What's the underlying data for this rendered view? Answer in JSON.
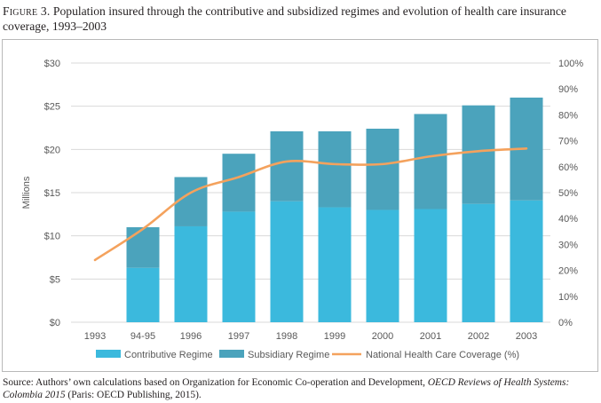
{
  "caption": {
    "figure_label": "Figure 3.",
    "text": "Population insured through the contributive and subsidized regimes and evolution of health care insurance coverage, 1993–2003"
  },
  "source": {
    "prefix": "Source: Authors’ own calculations based on Organization for Economic Co-operation and Development, ",
    "title": "OECD Reviews of Health Systems: Colombia 2015",
    "suffix": " (Paris: OECD Publishing, 2015)."
  },
  "colors": {
    "contributive": "#3bb9dd",
    "subsidiary": "#4ba3bc",
    "coverage": "#f4a25d",
    "grid": "#d9d9d9",
    "axis_text": "#595959"
  },
  "chart_data": {
    "type": "bar",
    "stacked": true,
    "categories": [
      "1993",
      "94-95",
      "1996",
      "1997",
      "1998",
      "1999",
      "2000",
      "2001",
      "2002",
      "2003"
    ],
    "series": [
      {
        "name": "Contributive Regime",
        "axis": "left",
        "values": [
          null,
          6.3,
          11.1,
          12.8,
          14.0,
          13.3,
          13.0,
          13.1,
          13.7,
          14.1
        ]
      },
      {
        "name": "Subsidiary Regime",
        "axis": "left",
        "values": [
          null,
          4.7,
          5.7,
          6.7,
          8.1,
          8.8,
          9.4,
          11.0,
          11.4,
          11.9
        ]
      },
      {
        "name": "National Health Care Coverage (%)",
        "type": "line",
        "axis": "right",
        "values": [
          24,
          36,
          50,
          56,
          62,
          61,
          61,
          64,
          66,
          67
        ]
      }
    ],
    "ylabel": "Millions",
    "ylim": [
      0,
      30
    ],
    "y_ticks": [
      "$0",
      "$5",
      "$10",
      "$15",
      "$20",
      "$25",
      "$30"
    ],
    "y2lim": [
      0,
      100
    ],
    "y2_ticks": [
      "0%",
      "10%",
      "20%",
      "30%",
      "40%",
      "50%",
      "60%",
      "70%",
      "80%",
      "90%",
      "100%"
    ],
    "grid": true,
    "legend": "bottom"
  }
}
